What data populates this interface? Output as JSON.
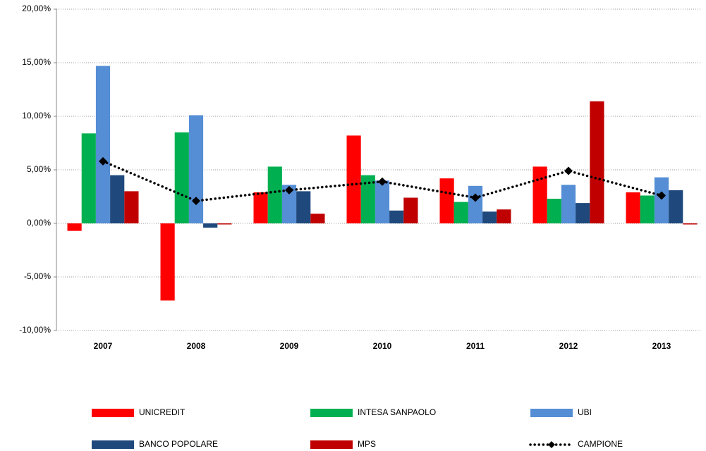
{
  "chart_data": {
    "type": "bar",
    "categories": [
      "2007",
      "2008",
      "2009",
      "2010",
      "2011",
      "2012",
      "2013"
    ],
    "series": [
      {
        "name": "UNICREDIT",
        "color": "#ff0000",
        "values": [
          -0.7,
          -7.2,
          2.9,
          8.2,
          4.2,
          5.3,
          2.9
        ]
      },
      {
        "name": "INTESA SANPAOLO",
        "color": "#00b050",
        "values": [
          8.4,
          8.5,
          5.3,
          4.5,
          2.0,
          2.3,
          2.6
        ]
      },
      {
        "name": "UBI",
        "color": "#558ed5",
        "values": [
          14.7,
          10.1,
          3.6,
          4.0,
          3.5,
          3.6,
          4.3
        ]
      },
      {
        "name": "BANCO POPOLARE",
        "color": "#1f497d",
        "values": [
          4.5,
          -0.4,
          3.0,
          1.2,
          1.1,
          1.9,
          3.1
        ]
      },
      {
        "name": "MPS",
        "color": "#c00000",
        "values": [
          3.0,
          -0.1,
          0.9,
          2.4,
          1.3,
          11.4,
          -0.1
        ]
      },
      {
        "name": "CAMPIONE",
        "type": "line",
        "color": "#000000",
        "values": [
          5.8,
          2.1,
          3.1,
          3.9,
          2.4,
          4.9,
          2.6
        ]
      }
    ],
    "ylim": [
      -10,
      20
    ],
    "yticks": [
      {
        "value": -10,
        "label": "-10,00%"
      },
      {
        "value": -5,
        "label": "-5,00%"
      },
      {
        "value": 0,
        "label": "0,00%"
      },
      {
        "value": 5,
        "label": "5,00%"
      },
      {
        "value": 10,
        "label": "10,00%"
      },
      {
        "value": 15,
        "label": "15,00%"
      },
      {
        "value": 20,
        "label": "20,00%"
      }
    ],
    "grid": true
  }
}
